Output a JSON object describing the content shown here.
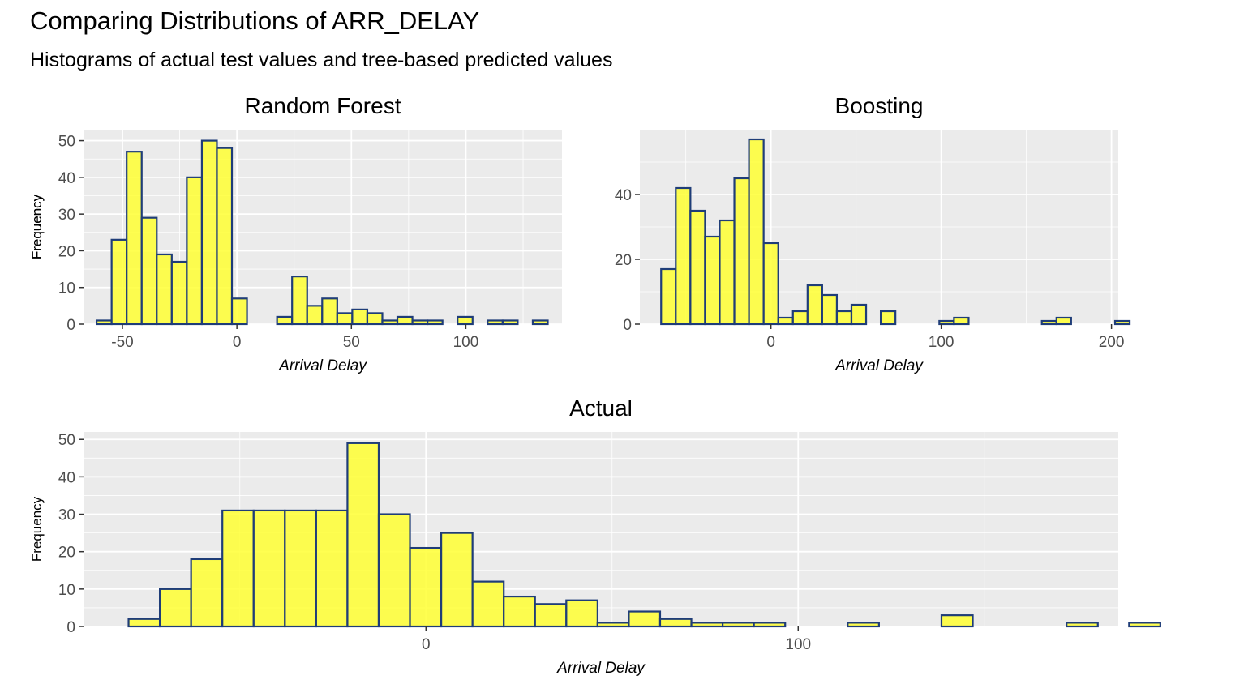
{
  "title": "Comparing Distributions of ARR_DELAY",
  "subtitle": "Histograms of actual test values and tree-based predicted values",
  "colors": {
    "fill": "#FFFF33",
    "outline": "#1F3D78",
    "panel": "#EBEBEB",
    "grid": "#FFFFFF",
    "tick_text": "#4D4D4D"
  },
  "chart_data": [
    {
      "type": "bar",
      "title": "Random Forest",
      "xlabel": "Arrival Delay",
      "ylabel": "Frequency",
      "xlim": [
        -67,
        142
      ],
      "ylim": [
        0,
        53
      ],
      "x_ticks": [
        -50,
        0,
        50,
        100
      ],
      "x_tick_labels": [
        "-50",
        "0",
        "50",
        "100"
      ],
      "y_ticks": [
        0,
        10,
        20,
        30,
        40,
        50
      ],
      "y_tick_labels": [
        "0",
        "10",
        "20",
        "30",
        "40",
        "50"
      ],
      "bin_start": -61.3,
      "bin_width": 6.57,
      "counts": [
        1,
        23,
        47,
        29,
        19,
        17,
        40,
        50,
        48,
        7,
        0,
        0,
        2,
        13,
        5,
        7,
        3,
        4,
        3,
        1,
        2,
        1,
        1,
        0,
        2,
        0,
        1,
        1,
        0,
        1
      ]
    },
    {
      "type": "bar",
      "title": "Boosting",
      "xlabel": "Arrival Delay",
      "ylabel": "Frequency",
      "xlim": [
        -77,
        204
      ],
      "ylim": [
        0,
        60
      ],
      "x_ticks": [
        0,
        100,
        200
      ],
      "x_tick_labels": [
        "0",
        "100",
        "200"
      ],
      "y_ticks": [
        0,
        20,
        40
      ],
      "y_tick_labels": [
        "0",
        "20",
        "40"
      ],
      "bin_start": -64.5,
      "bin_width": 8.6,
      "counts": [
        17,
        42,
        35,
        27,
        32,
        45,
        57,
        25,
        2,
        4,
        12,
        9,
        4,
        6,
        0,
        4,
        0,
        0,
        0,
        1,
        2,
        0,
        0,
        0,
        0,
        0,
        1,
        2,
        0,
        0,
        0,
        1
      ]
    },
    {
      "type": "bar",
      "title": "Actual",
      "xlabel": "Arrival Delay",
      "ylabel": "Frequency",
      "xlim": [
        -92,
        186
      ],
      "ylim": [
        0,
        52
      ],
      "x_ticks": [
        0,
        100
      ],
      "x_tick_labels": [
        "0",
        "100"
      ],
      "y_ticks": [
        0,
        10,
        20,
        30,
        40,
        50
      ],
      "y_tick_labels": [
        "0",
        "10",
        "20",
        "30",
        "40",
        "50"
      ],
      "bin_start": -79.9,
      "bin_width": 8.4,
      "counts": [
        2,
        10,
        18,
        31,
        31,
        31,
        31,
        49,
        30,
        21,
        25,
        12,
        8,
        6,
        7,
        1,
        4,
        2,
        1,
        1,
        1,
        0,
        0,
        1,
        0,
        0,
        3,
        0,
        0,
        0,
        1,
        0,
        1
      ]
    }
  ]
}
